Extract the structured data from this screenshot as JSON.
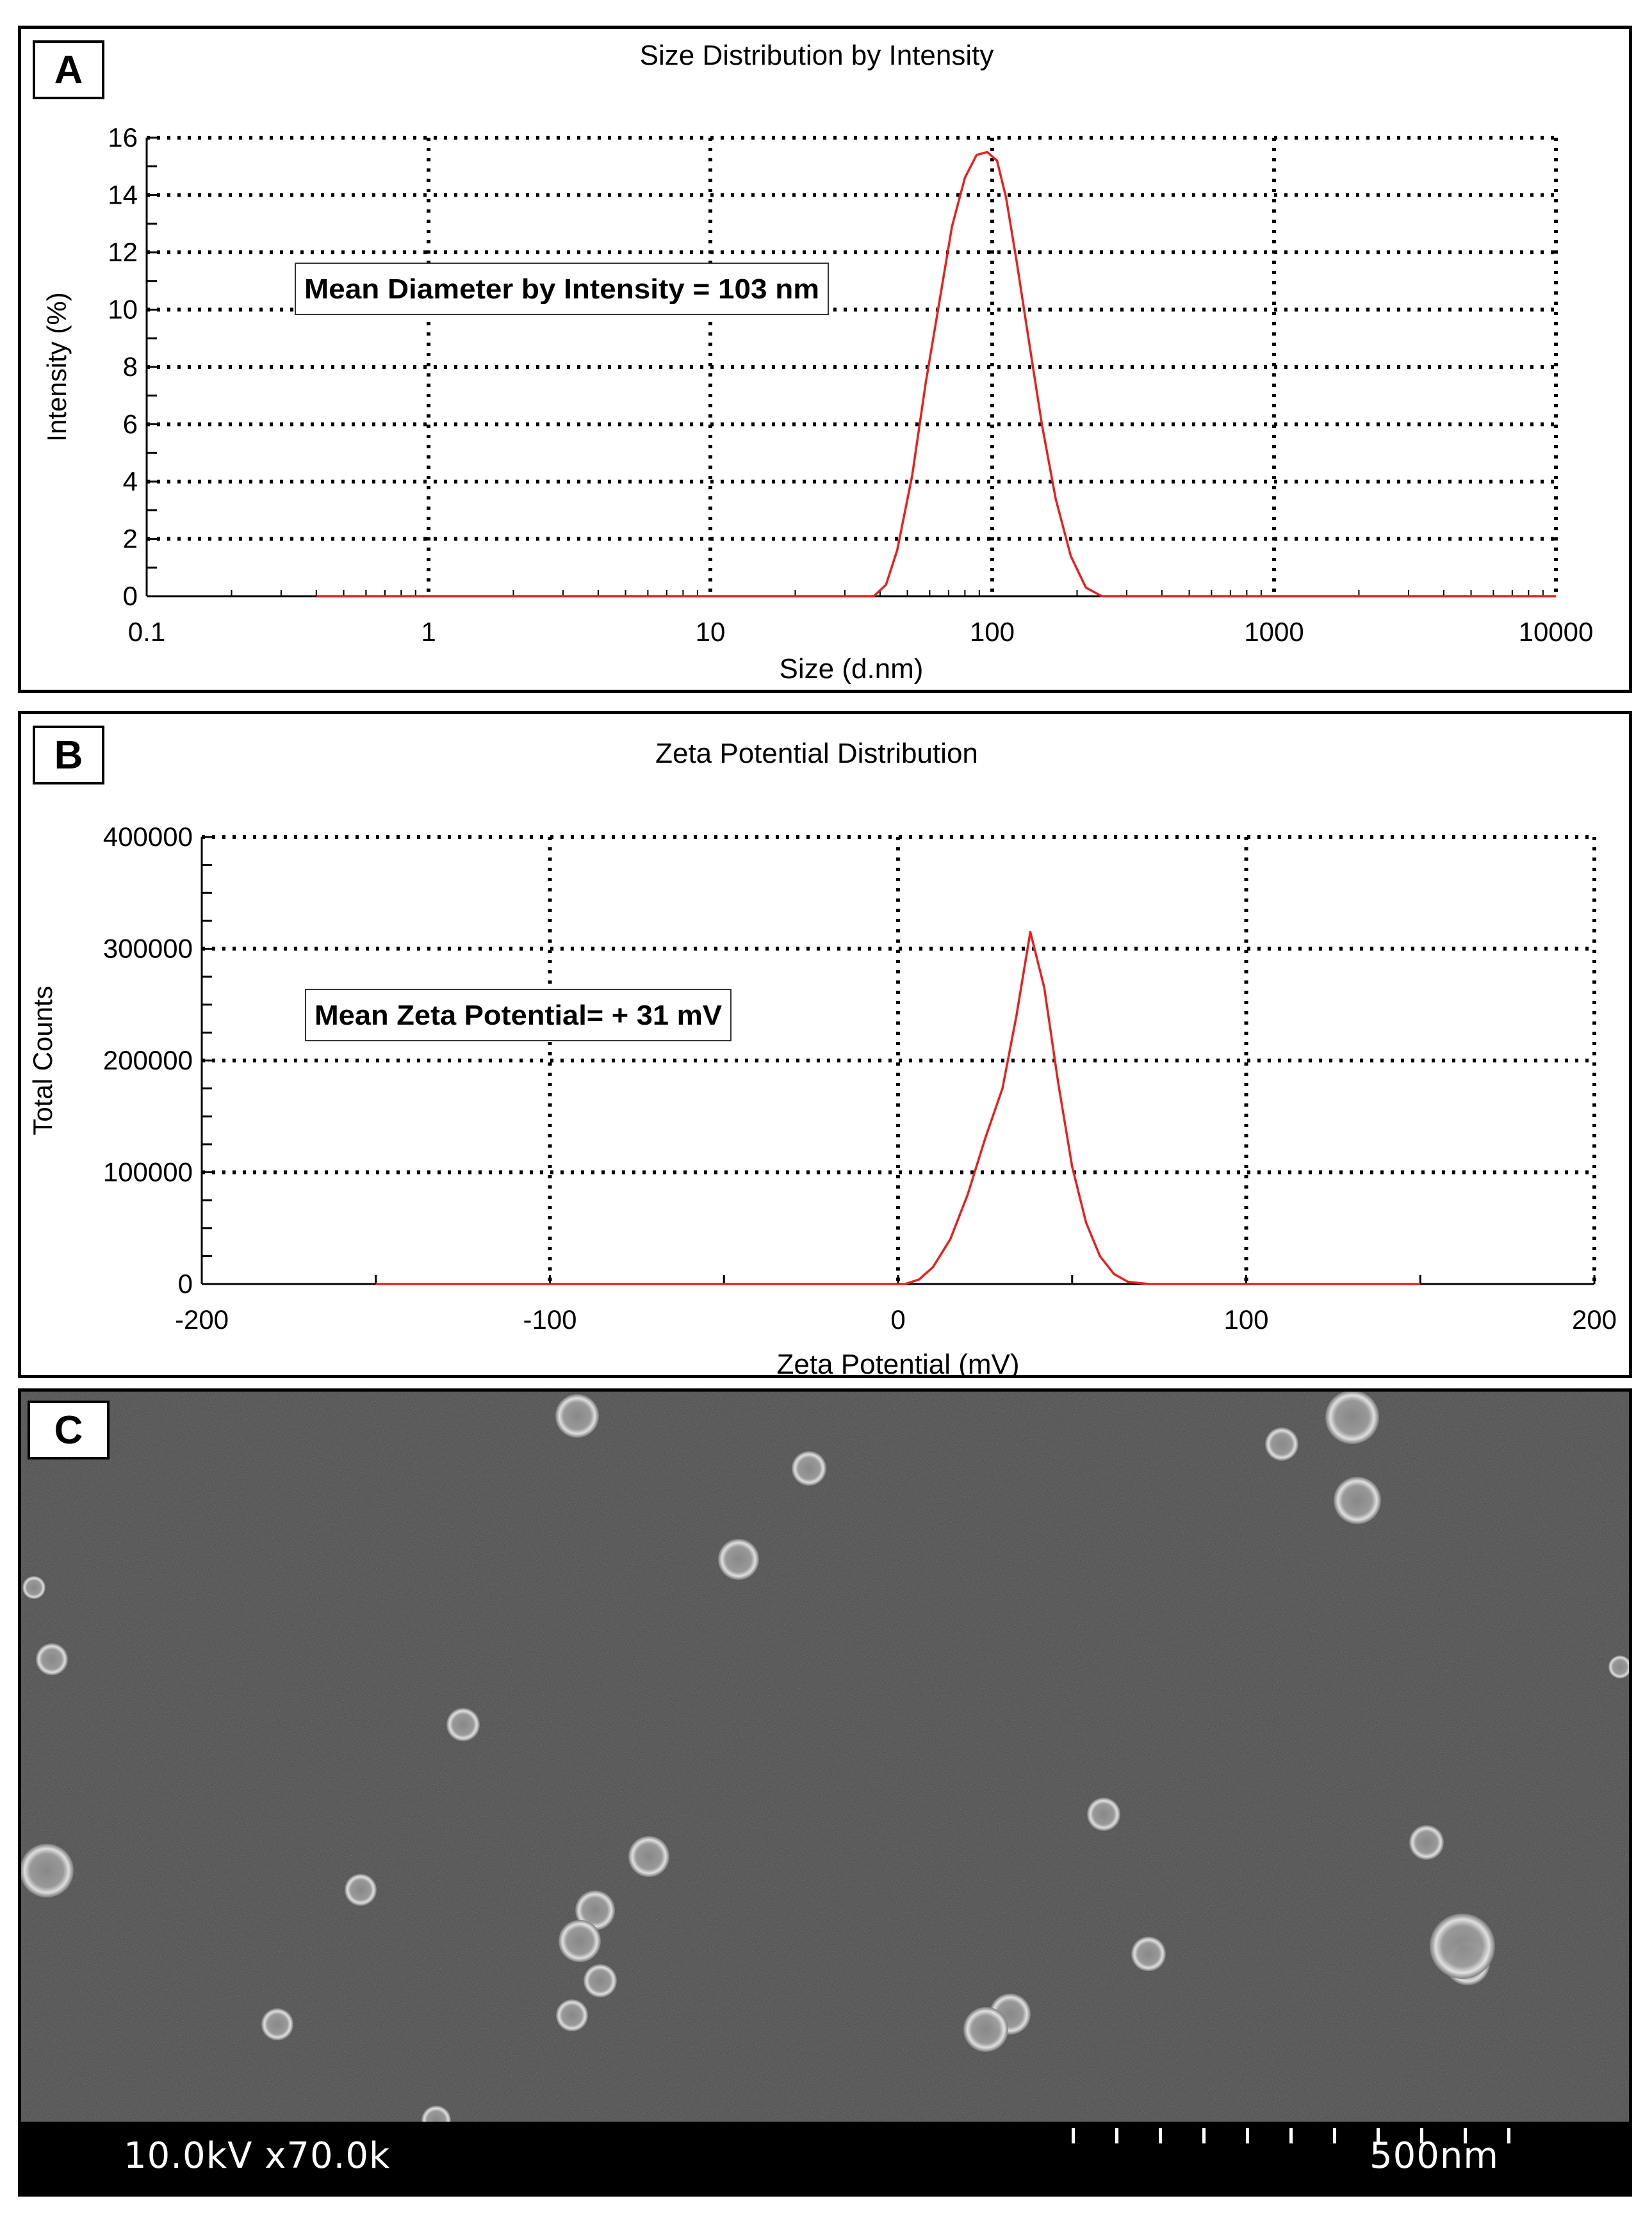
{
  "chart_data": [
    {
      "panel_label": "A",
      "type": "line",
      "title": "Size Distribution by Intensity",
      "xlabel": "Size (d.nm)",
      "ylabel": "Intensity (%)",
      "x_scale": "log",
      "xlim": [
        0.1,
        10000
      ],
      "ylim": [
        0,
        16
      ],
      "x_ticks": [
        0.1,
        1,
        10,
        100,
        1000,
        10000
      ],
      "x_tick_labels": [
        "0.1",
        "1",
        "10",
        "100",
        "1000",
        "10000"
      ],
      "y_ticks": [
        0,
        2,
        4,
        6,
        8,
        10,
        12,
        14,
        16
      ],
      "y_tick_labels": [
        "0",
        "2",
        "4",
        "6",
        "8",
        "10",
        "12",
        "14",
        "16"
      ],
      "grid": true,
      "line_color": "#e8201c",
      "annotation": "Mean Diameter by Intensity = 103 nm",
      "series": [
        {
          "x": [
            0.4,
            10,
            38,
            42,
            46,
            52,
            58,
            65,
            72,
            80,
            88,
            96,
            104,
            112,
            122,
            135,
            150,
            168,
            190,
            215,
            245,
            280,
            400,
            1000,
            5000,
            10000
          ],
          "y": [
            0,
            0,
            0,
            0.4,
            1.6,
            4.2,
            7.4,
            10.3,
            12.9,
            14.6,
            15.4,
            15.5,
            15.2,
            13.9,
            11.7,
            8.9,
            6.0,
            3.4,
            1.4,
            0.3,
            0,
            0,
            0,
            0,
            0,
            0
          ]
        }
      ]
    },
    {
      "panel_label": "B",
      "type": "line",
      "title": "Zeta Potential Distribution",
      "xlabel": "Zeta Potential (mV)",
      "ylabel": "Total Counts",
      "xlim": [
        -200,
        200
      ],
      "ylim": [
        0,
        400000
      ],
      "x_ticks": [
        -200,
        -100,
        0,
        100,
        200
      ],
      "x_tick_labels": [
        "-200",
        "-100",
        "0",
        "100",
        "200"
      ],
      "y_ticks": [
        0,
        100000,
        200000,
        300000,
        400000
      ],
      "y_tick_labels": [
        "0",
        "100000",
        "200000",
        "300000",
        "400000"
      ],
      "grid": true,
      "line_color": "#e8201c",
      "annotation": "Mean Zeta Potential= + 31 mV",
      "series": [
        {
          "x": [
            -150,
            -50,
            2,
            6,
            10,
            15,
            20,
            25,
            30,
            34,
            38,
            42,
            46,
            50,
            54,
            58,
            62,
            66,
            72,
            80,
            150
          ],
          "y": [
            0,
            0,
            0,
            4000,
            15000,
            40000,
            80000,
            130000,
            175000,
            240000,
            315000,
            265000,
            180000,
            105000,
            55000,
            25000,
            9000,
            2000,
            0,
            0,
            0
          ]
        }
      ]
    }
  ],
  "sem": {
    "panel_label": "C",
    "info_left": "10.0kV x70.0k",
    "scale_label": "500nm"
  }
}
